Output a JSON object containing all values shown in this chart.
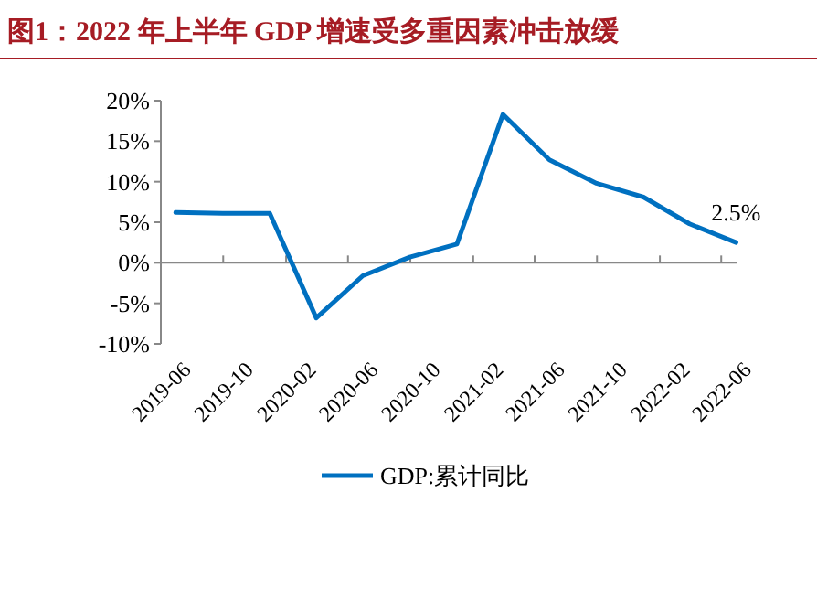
{
  "chart_data": {
    "type": "line",
    "title": "图1：2022 年上半年 GDP 增速受多重因素冲击放缓",
    "x": [
      "2019-06-30",
      "2019-09-30",
      "2019-12-31",
      "2020-03-31",
      "2020-06-30",
      "2020-09-30",
      "2020-12-31",
      "2021-03-31",
      "2021-06-30",
      "2021-09-30",
      "2021-12-31",
      "2022-03-31",
      "2022-06-30"
    ],
    "series": [
      {
        "name": "GDP:累计同比",
        "color": "#0070c0",
        "values": [
          6.2,
          6.1,
          6.1,
          -6.8,
          -1.6,
          0.7,
          2.3,
          18.3,
          12.7,
          9.8,
          8.1,
          4.8,
          2.5
        ],
        "value_labels": [
          null,
          null,
          null,
          null,
          null,
          null,
          null,
          null,
          null,
          null,
          null,
          null,
          "2.5%"
        ]
      }
    ],
    "xlim": [
      "2019-06",
      "2022-07"
    ],
    "xticks": [
      "2019-06",
      "2019-10",
      "2020-02",
      "2020-06",
      "2020-10",
      "2021-02",
      "2021-06",
      "2021-10",
      "2022-02",
      "2022-06"
    ],
    "ylim": [
      -10,
      20
    ],
    "yticks": [
      {
        "value": -10,
        "label": "-10%"
      },
      {
        "value": -5,
        "label": "-5%"
      },
      {
        "value": 0,
        "label": "0%"
      },
      {
        "value": 5,
        "label": "5%"
      },
      {
        "value": 10,
        "label": "10%"
      },
      {
        "value": 15,
        "label": "15%"
      },
      {
        "value": 20,
        "label": "20%"
      }
    ],
    "legend": "bottom",
    "marker": "none",
    "line_style": "solid"
  }
}
